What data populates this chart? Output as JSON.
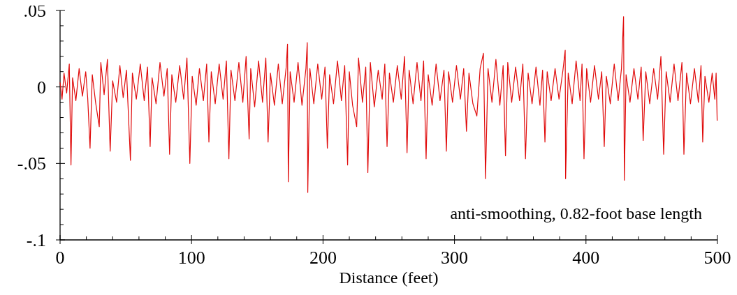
{
  "chart_data": {
    "type": "line",
    "xlabel": "Distance (feet)",
    "annotations": [
      "anti-smoothing, 0.82-foot base length"
    ],
    "xlim": [
      0,
      500
    ],
    "xticks": [
      0,
      {
        "value": 20,
        "label": null
      },
      {
        "value": 40,
        "label": null
      },
      {
        "value": 60,
        "label": null
      },
      {
        "value": 80,
        "label": null
      },
      100,
      {
        "value": 120,
        "label": null
      },
      {
        "value": 140,
        "label": null
      },
      {
        "value": 160,
        "label": null
      },
      {
        "value": 180,
        "label": null
      },
      200,
      {
        "value": 220,
        "label": null
      },
      {
        "value": 240,
        "label": null
      },
      {
        "value": 260,
        "label": null
      },
      {
        "value": 280,
        "label": null
      },
      300,
      {
        "value": 320,
        "label": null
      },
      {
        "value": 340,
        "label": null
      },
      {
        "value": 360,
        "label": null
      },
      {
        "value": 380,
        "label": null
      },
      400,
      {
        "value": 420,
        "label": null
      },
      {
        "value": 440,
        "label": null
      },
      {
        "value": 460,
        "label": null
      },
      {
        "value": 480,
        "label": null
      },
      500
    ],
    "ylim": [
      -0.1,
      0.05
    ],
    "yticks": [
      {
        "value": -0.1,
        "label": "-.1"
      },
      {
        "value": -0.09,
        "label": null
      },
      {
        "value": -0.08,
        "label": null
      },
      {
        "value": -0.07,
        "label": null
      },
      {
        "value": -0.06,
        "label": null
      },
      {
        "value": -0.05,
        "label": "-.05"
      },
      {
        "value": -0.04,
        "label": null
      },
      {
        "value": -0.03,
        "label": null
      },
      {
        "value": -0.02,
        "label": null
      },
      {
        "value": -0.01,
        "label": null
      },
      0,
      {
        "value": 0.01,
        "label": null
      },
      {
        "value": 0.02,
        "label": null
      },
      {
        "value": 0.03,
        "label": null
      },
      {
        "value": 0.04,
        "label": null
      },
      {
        "value": 0.05,
        "label": ".05"
      }
    ],
    "marker": "none",
    "line_style": "solid",
    "series": [
      {
        "color": "#e00b0b",
        "x": [
          0,
          1.5,
          3,
          5,
          7,
          8.3,
          9.5,
          12,
          14.5,
          17,
          19.5,
          21,
          22.8,
          24.5,
          27,
          29.8,
          31,
          33.5,
          36,
          38.1,
          40,
          43,
          45.5,
          48,
          50.5,
          53.5,
          55,
          58,
          61,
          64,
          66.5,
          68.5,
          70,
          73,
          76,
          79,
          81.5,
          83.3,
          85,
          88,
          91,
          94,
          96.5,
          98.7,
          100.5,
          103.5,
          106,
          109,
          111.5,
          113.2,
          115,
          118,
          121,
          124,
          126.5,
          128.4,
          130,
          133,
          136,
          139,
          141.5,
          143.8,
          145,
          148,
          151,
          154,
          156.5,
          158.2,
          160,
          163,
          166,
          169,
          172,
          173,
          173.6,
          175,
          178,
          181,
          184,
          187,
          188,
          188.4,
          190,
          193,
          196,
          199,
          201.5,
          203.3,
          205,
          208,
          211,
          214,
          216.5,
          218.7,
          220,
          222.5,
          225.6,
          227,
          230,
          232.5,
          234.1,
          236,
          239,
          242,
          245,
          247,
          248.7,
          250.5,
          253.5,
          256.5,
          259.5,
          262,
          263.9,
          265.5,
          268.5,
          271.5,
          274.5,
          276.5,
          278.4,
          280,
          283,
          286,
          289,
          292,
          293.8,
          295.5,
          298.5,
          301.5,
          304.5,
          307,
          309.1,
          311,
          314,
          317,
          319.5,
          322,
          323.6,
          325.5,
          328.5,
          331.5,
          334.5,
          337,
          338.8,
          340.5,
          343.5,
          346.5,
          349.5,
          352,
          354,
          356,
          359,
          362,
          365,
          367,
          368.8,
          370.5,
          373.5,
          376.5,
          379.5,
          382.5,
          384.2,
          384.5,
          386.5,
          389.5,
          392.5,
          395.5,
          397,
          398.5,
          400.5,
          403.5,
          406.5,
          409.5,
          412,
          413.9,
          415.5,
          418.5,
          421.5,
          424.5,
          427,
          428.6,
          429.2,
          430.5,
          433.5,
          436.5,
          439.5,
          442,
          443.5,
          445.5,
          448.5,
          451.5,
          454.5,
          457,
          459.1,
          461,
          464,
          467,
          470,
          473,
          474.5,
          476.5,
          479.5,
          482.5,
          485.5,
          487.5,
          488.8,
          490.5,
          493.5,
          496,
          498,
          499,
          499.8
        ],
        "values": [
          0.003,
          -0.008,
          0.009,
          -0.004,
          0.015,
          -0.051,
          0.006,
          -0.009,
          0.012,
          -0.006,
          0.01,
          -0.007,
          -0.04,
          0.008,
          -0.01,
          -0.026,
          0.016,
          -0.005,
          0.018,
          -0.042,
          0.004,
          -0.01,
          0.014,
          -0.007,
          0.011,
          -0.048,
          0.009,
          -0.008,
          0.015,
          -0.009,
          0.013,
          -0.039,
          0.006,
          -0.011,
          0.016,
          -0.006,
          0.012,
          -0.044,
          0.008,
          -0.01,
          0.014,
          -0.008,
          0.019,
          -0.05,
          0.007,
          -0.012,
          0.012,
          -0.009,
          0.015,
          -0.036,
          0.01,
          -0.011,
          0.015,
          -0.008,
          0.017,
          -0.047,
          0.011,
          -0.009,
          0.016,
          -0.01,
          0.02,
          -0.034,
          0.012,
          -0.013,
          0.017,
          -0.01,
          0.019,
          -0.036,
          0.009,
          -0.012,
          0.015,
          -0.011,
          0.013,
          0.028,
          -0.062,
          0.01,
          -0.01,
          0.016,
          -0.012,
          0.012,
          0.029,
          -0.069,
          0.012,
          -0.011,
          0.015,
          -0.008,
          0.013,
          -0.04,
          0.008,
          -0.011,
          0.017,
          -0.009,
          0.014,
          -0.051,
          0.01,
          -0.012,
          -0.026,
          0.019,
          -0.01,
          0.013,
          -0.056,
          0.016,
          -0.013,
          0.011,
          -0.008,
          0.015,
          -0.039,
          0.009,
          -0.01,
          0.014,
          -0.008,
          0.02,
          -0.043,
          0.011,
          -0.011,
          0.016,
          -0.009,
          0.017,
          -0.047,
          0.008,
          -0.012,
          0.015,
          -0.009,
          0.011,
          -0.042,
          0.01,
          -0.01,
          0.014,
          -0.008,
          0.012,
          -0.029,
          0.009,
          -0.011,
          -0.019,
          0.012,
          0.022,
          -0.06,
          0.012,
          -0.01,
          0.018,
          -0.012,
          0.014,
          -0.045,
          0.016,
          -0.01,
          0.013,
          -0.009,
          0.015,
          -0.047,
          0.009,
          -0.011,
          0.013,
          -0.012,
          0.011,
          -0.036,
          0.01,
          -0.009,
          0.012,
          -0.008,
          0.011,
          0.024,
          -0.06,
          0.009,
          -0.011,
          0.017,
          -0.009,
          0.015,
          -0.047,
          0.012,
          -0.01,
          0.014,
          -0.008,
          0.01,
          -0.039,
          0.007,
          -0.011,
          0.015,
          -0.009,
          0.012,
          0.046,
          -0.061,
          0.008,
          -0.01,
          0.012,
          -0.008,
          0.013,
          -0.035,
          0.01,
          -0.011,
          0.012,
          -0.008,
          0.02,
          -0.044,
          0.01,
          -0.01,
          0.015,
          -0.009,
          0.016,
          -0.044,
          0.009,
          -0.011,
          0.012,
          -0.01,
          0.014,
          -0.036,
          0.007,
          -0.01,
          0.009,
          -0.008,
          0.009,
          -0.022
        ]
      }
    ]
  }
}
